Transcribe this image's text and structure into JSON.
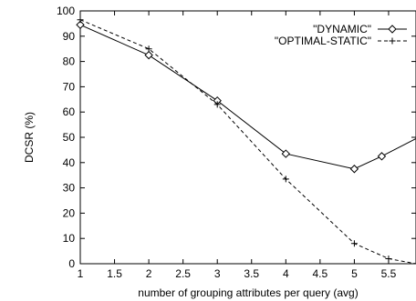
{
  "chart_data": {
    "type": "line",
    "title": "",
    "xlabel": "number of grouping attributes per query (avg)",
    "ylabel": "DCSR (%)",
    "xlim": [
      1,
      5.9
    ],
    "ylim": [
      0,
      100
    ],
    "x_ticks": [
      "1",
      "1.5",
      "2",
      "2.5",
      "3",
      "3.5",
      "4",
      "4.5",
      "5",
      "5.5"
    ],
    "y_ticks": [
      "0",
      "10",
      "20",
      "30",
      "40",
      "50",
      "60",
      "70",
      "80",
      "90",
      "100"
    ],
    "grid": false,
    "legend_position": "top-right",
    "series": [
      {
        "name": "\"DYNAMIC\"",
        "marker": "diamond",
        "line": "solid",
        "color": "#000000",
        "x": [
          1,
          2,
          3,
          4,
          5,
          5.4,
          5.9
        ],
        "y": [
          94.5,
          82.5,
          64.5,
          43.5,
          37.5,
          42.5,
          49.5
        ]
      },
      {
        "name": "\"OPTIMAL-STATIC\"",
        "marker": "plus",
        "line": "dashed",
        "color": "#000000",
        "x": [
          1,
          2,
          3,
          4,
          5,
          5.5,
          5.9
        ],
        "y": [
          96.5,
          85,
          63,
          33.5,
          8,
          2,
          0
        ]
      }
    ]
  }
}
